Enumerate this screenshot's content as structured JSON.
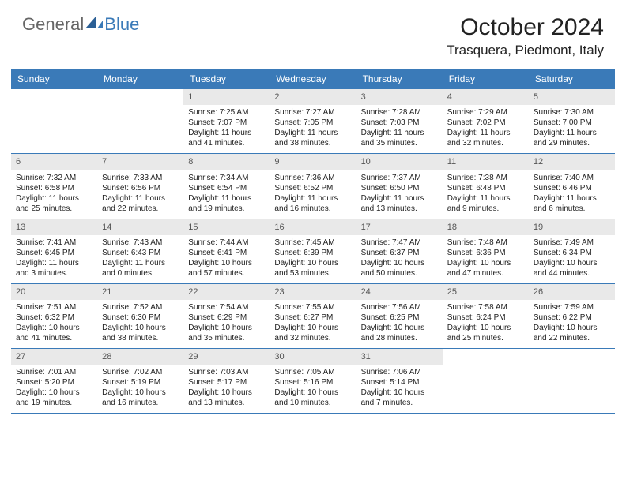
{
  "brand": {
    "part1": "General",
    "part2": "Blue"
  },
  "title": "October 2024",
  "location": "Trasquera, Piedmont, Italy",
  "colors": {
    "header_bg": "#3a7ab8",
    "header_fg": "#ffffff",
    "daynum_bg": "#e9e9e9",
    "rule": "#3a7ab8",
    "background": "#ffffff"
  },
  "dayheaders": [
    "Sunday",
    "Monday",
    "Tuesday",
    "Wednesday",
    "Thursday",
    "Friday",
    "Saturday"
  ],
  "weeks": [
    [
      {
        "num": "",
        "empty": true,
        "sunrise": "",
        "sunset": "",
        "daylight": ""
      },
      {
        "num": "",
        "empty": true,
        "sunrise": "",
        "sunset": "",
        "daylight": ""
      },
      {
        "num": "1",
        "sunrise": "Sunrise: 7:25 AM",
        "sunset": "Sunset: 7:07 PM",
        "daylight": "Daylight: 11 hours and 41 minutes."
      },
      {
        "num": "2",
        "sunrise": "Sunrise: 7:27 AM",
        "sunset": "Sunset: 7:05 PM",
        "daylight": "Daylight: 11 hours and 38 minutes."
      },
      {
        "num": "3",
        "sunrise": "Sunrise: 7:28 AM",
        "sunset": "Sunset: 7:03 PM",
        "daylight": "Daylight: 11 hours and 35 minutes."
      },
      {
        "num": "4",
        "sunrise": "Sunrise: 7:29 AM",
        "sunset": "Sunset: 7:02 PM",
        "daylight": "Daylight: 11 hours and 32 minutes."
      },
      {
        "num": "5",
        "sunrise": "Sunrise: 7:30 AM",
        "sunset": "Sunset: 7:00 PM",
        "daylight": "Daylight: 11 hours and 29 minutes."
      }
    ],
    [
      {
        "num": "6",
        "sunrise": "Sunrise: 7:32 AM",
        "sunset": "Sunset: 6:58 PM",
        "daylight": "Daylight: 11 hours and 25 minutes."
      },
      {
        "num": "7",
        "sunrise": "Sunrise: 7:33 AM",
        "sunset": "Sunset: 6:56 PM",
        "daylight": "Daylight: 11 hours and 22 minutes."
      },
      {
        "num": "8",
        "sunrise": "Sunrise: 7:34 AM",
        "sunset": "Sunset: 6:54 PM",
        "daylight": "Daylight: 11 hours and 19 minutes."
      },
      {
        "num": "9",
        "sunrise": "Sunrise: 7:36 AM",
        "sunset": "Sunset: 6:52 PM",
        "daylight": "Daylight: 11 hours and 16 minutes."
      },
      {
        "num": "10",
        "sunrise": "Sunrise: 7:37 AM",
        "sunset": "Sunset: 6:50 PM",
        "daylight": "Daylight: 11 hours and 13 minutes."
      },
      {
        "num": "11",
        "sunrise": "Sunrise: 7:38 AM",
        "sunset": "Sunset: 6:48 PM",
        "daylight": "Daylight: 11 hours and 9 minutes."
      },
      {
        "num": "12",
        "sunrise": "Sunrise: 7:40 AM",
        "sunset": "Sunset: 6:46 PM",
        "daylight": "Daylight: 11 hours and 6 minutes."
      }
    ],
    [
      {
        "num": "13",
        "sunrise": "Sunrise: 7:41 AM",
        "sunset": "Sunset: 6:45 PM",
        "daylight": "Daylight: 11 hours and 3 minutes."
      },
      {
        "num": "14",
        "sunrise": "Sunrise: 7:43 AM",
        "sunset": "Sunset: 6:43 PM",
        "daylight": "Daylight: 11 hours and 0 minutes."
      },
      {
        "num": "15",
        "sunrise": "Sunrise: 7:44 AM",
        "sunset": "Sunset: 6:41 PM",
        "daylight": "Daylight: 10 hours and 57 minutes."
      },
      {
        "num": "16",
        "sunrise": "Sunrise: 7:45 AM",
        "sunset": "Sunset: 6:39 PM",
        "daylight": "Daylight: 10 hours and 53 minutes."
      },
      {
        "num": "17",
        "sunrise": "Sunrise: 7:47 AM",
        "sunset": "Sunset: 6:37 PM",
        "daylight": "Daylight: 10 hours and 50 minutes."
      },
      {
        "num": "18",
        "sunrise": "Sunrise: 7:48 AM",
        "sunset": "Sunset: 6:36 PM",
        "daylight": "Daylight: 10 hours and 47 minutes."
      },
      {
        "num": "19",
        "sunrise": "Sunrise: 7:49 AM",
        "sunset": "Sunset: 6:34 PM",
        "daylight": "Daylight: 10 hours and 44 minutes."
      }
    ],
    [
      {
        "num": "20",
        "sunrise": "Sunrise: 7:51 AM",
        "sunset": "Sunset: 6:32 PM",
        "daylight": "Daylight: 10 hours and 41 minutes."
      },
      {
        "num": "21",
        "sunrise": "Sunrise: 7:52 AM",
        "sunset": "Sunset: 6:30 PM",
        "daylight": "Daylight: 10 hours and 38 minutes."
      },
      {
        "num": "22",
        "sunrise": "Sunrise: 7:54 AM",
        "sunset": "Sunset: 6:29 PM",
        "daylight": "Daylight: 10 hours and 35 minutes."
      },
      {
        "num": "23",
        "sunrise": "Sunrise: 7:55 AM",
        "sunset": "Sunset: 6:27 PM",
        "daylight": "Daylight: 10 hours and 32 minutes."
      },
      {
        "num": "24",
        "sunrise": "Sunrise: 7:56 AM",
        "sunset": "Sunset: 6:25 PM",
        "daylight": "Daylight: 10 hours and 28 minutes."
      },
      {
        "num": "25",
        "sunrise": "Sunrise: 7:58 AM",
        "sunset": "Sunset: 6:24 PM",
        "daylight": "Daylight: 10 hours and 25 minutes."
      },
      {
        "num": "26",
        "sunrise": "Sunrise: 7:59 AM",
        "sunset": "Sunset: 6:22 PM",
        "daylight": "Daylight: 10 hours and 22 minutes."
      }
    ],
    [
      {
        "num": "27",
        "sunrise": "Sunrise: 7:01 AM",
        "sunset": "Sunset: 5:20 PM",
        "daylight": "Daylight: 10 hours and 19 minutes."
      },
      {
        "num": "28",
        "sunrise": "Sunrise: 7:02 AM",
        "sunset": "Sunset: 5:19 PM",
        "daylight": "Daylight: 10 hours and 16 minutes."
      },
      {
        "num": "29",
        "sunrise": "Sunrise: 7:03 AM",
        "sunset": "Sunset: 5:17 PM",
        "daylight": "Daylight: 10 hours and 13 minutes."
      },
      {
        "num": "30",
        "sunrise": "Sunrise: 7:05 AM",
        "sunset": "Sunset: 5:16 PM",
        "daylight": "Daylight: 10 hours and 10 minutes."
      },
      {
        "num": "31",
        "sunrise": "Sunrise: 7:06 AM",
        "sunset": "Sunset: 5:14 PM",
        "daylight": "Daylight: 10 hours and 7 minutes."
      },
      {
        "num": "",
        "empty": true,
        "sunrise": "",
        "sunset": "",
        "daylight": ""
      },
      {
        "num": "",
        "empty": true,
        "sunrise": "",
        "sunset": "",
        "daylight": ""
      }
    ]
  ]
}
